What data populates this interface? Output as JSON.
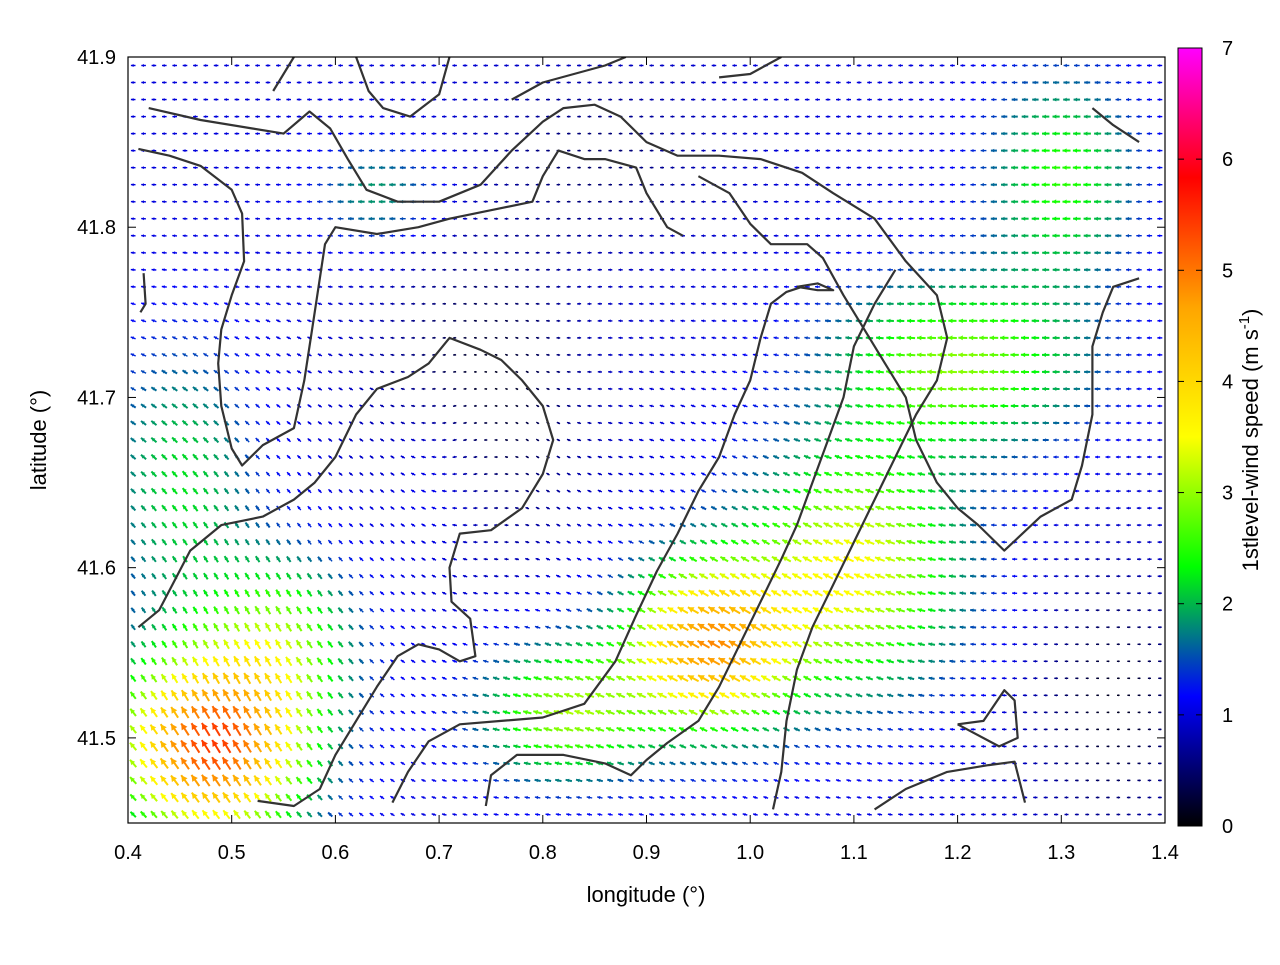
{
  "chart_data": {
    "type": "vector-field",
    "xlabel": "longitude (°)",
    "ylabel": "latitude (°)",
    "xlim": [
      0.4,
      1.4
    ],
    "ylim": [
      41.45,
      41.9
    ],
    "xticks": [
      "0.4",
      "0.5",
      "0.6",
      "0.7",
      "0.8",
      "0.9",
      "1.0",
      "1.1",
      "1.2",
      "1.3",
      "1.4"
    ],
    "yticks": [
      "41.5",
      "41.6",
      "41.7",
      "41.8",
      "41.9"
    ],
    "colorbar": {
      "label": "1stlevel-wind speed (m s-1)",
      "label_main": "1stlevel-wind speed (m s",
      "label_sup": "-1",
      "label_end": ")",
      "min": 0,
      "max": 7,
      "ticks": [
        "0",
        "1",
        "2",
        "3",
        "4",
        "5",
        "6",
        "7"
      ],
      "colors": [
        "#000000",
        "#0000ff",
        "#00ff00",
        "#ffff00",
        "#ffa500",
        "#ff0000",
        "#ff00ff"
      ]
    },
    "grid": {
      "dlon": 0.01,
      "dlat": 0.01
    },
    "wind_regimes": [
      {
        "region": "north, west of 1.12",
        "direction": "westward",
        "speed_range": [
          0.3,
          2.2
        ]
      },
      {
        "region": "northeast corner",
        "direction": "west-southwestward",
        "speed_range": [
          2.0,
          3.0
        ]
      },
      {
        "region": "central valley",
        "direction": "convergent, weak",
        "speed_range": [
          0.0,
          1.2
        ]
      },
      {
        "region": "southwest",
        "direction": "north-northwestward",
        "speed_range": [
          1.5,
          5.4
        ]
      },
      {
        "region": "south-central",
        "direction": "northwestward",
        "speed_range": [
          2.5,
          4.8
        ]
      },
      {
        "region": "southeast",
        "direction": "westward",
        "speed_range": [
          0.5,
          2.5
        ]
      }
    ],
    "wind_speed_maxima": [
      {
        "lon": 0.48,
        "lat": 41.49,
        "speed": 5.3
      },
      {
        "lon": 0.96,
        "lat": 41.55,
        "speed": 4.6
      }
    ],
    "contour_lines": [
      [
        [
          0.42,
          41.87
        ],
        [
          0.47,
          41.863
        ],
        [
          0.52,
          41.858
        ],
        [
          0.55,
          41.855
        ],
        [
          0.575,
          41.868
        ],
        [
          0.595,
          41.858
        ],
        [
          0.612,
          41.84
        ],
        [
          0.63,
          41.822
        ],
        [
          0.66,
          41.815
        ],
        [
          0.7,
          41.815
        ],
        [
          0.74,
          41.825
        ],
        [
          0.77,
          41.845
        ],
        [
          0.8,
          41.862
        ],
        [
          0.82,
          41.87
        ],
        [
          0.85,
          41.872
        ],
        [
          0.875,
          41.865
        ],
        [
          0.9,
          41.85
        ],
        [
          0.93,
          41.842
        ],
        [
          0.97,
          41.842
        ],
        [
          1.01,
          41.84
        ],
        [
          1.05,
          41.832
        ],
        [
          1.08,
          41.82
        ],
        [
          1.12,
          41.805
        ],
        [
          1.15,
          41.78
        ],
        [
          1.18,
          41.76
        ],
        [
          1.19,
          41.735
        ],
        [
          1.18,
          41.71
        ],
        [
          1.16,
          41.69
        ],
        [
          1.14,
          41.665
        ],
        [
          1.12,
          41.64
        ],
        [
          1.1,
          41.615
        ],
        [
          1.08,
          41.59
        ],
        [
          1.06,
          41.565
        ],
        [
          1.045,
          41.54
        ],
        [
          1.035,
          41.51
        ],
        [
          1.03,
          41.48
        ],
        [
          1.022,
          41.458
        ]
      ],
      [
        [
          0.41,
          41.846
        ],
        [
          0.44,
          41.842
        ],
        [
          0.47,
          41.836
        ],
        [
          0.5,
          41.822
        ],
        [
          0.51,
          41.808
        ],
        [
          0.512,
          41.78
        ],
        [
          0.5,
          41.76
        ],
        [
          0.49,
          41.74
        ],
        [
          0.487,
          41.72
        ],
        [
          0.49,
          41.695
        ],
        [
          0.5,
          41.67
        ],
        [
          0.51,
          41.66
        ],
        [
          0.53,
          41.672
        ],
        [
          0.56,
          41.682
        ],
        [
          0.57,
          41.71
        ],
        [
          0.58,
          41.75
        ],
        [
          0.59,
          41.79
        ],
        [
          0.6,
          41.8
        ],
        [
          0.64,
          41.796
        ],
        [
          0.68,
          41.8
        ],
        [
          0.71,
          41.805
        ],
        [
          0.75,
          41.81
        ],
        [
          0.79,
          41.815
        ],
        [
          0.8,
          41.83
        ],
        [
          0.815,
          41.845
        ],
        [
          0.84,
          41.84
        ],
        [
          0.86,
          41.84
        ],
        [
          0.89,
          41.835
        ],
        [
          0.9,
          41.82
        ],
        [
          0.92,
          41.8
        ],
        [
          0.935,
          41.795
        ]
      ],
      [
        [
          0.41,
          41.565
        ],
        [
          0.43,
          41.575
        ],
        [
          0.46,
          41.61
        ],
        [
          0.49,
          41.625
        ],
        [
          0.53,
          41.63
        ],
        [
          0.56,
          41.64
        ],
        [
          0.58,
          41.65
        ],
        [
          0.6,
          41.665
        ],
        [
          0.62,
          41.69
        ],
        [
          0.64,
          41.705
        ],
        [
          0.67,
          41.712
        ],
        [
          0.69,
          41.72
        ],
        [
          0.71,
          41.735
        ],
        [
          0.74,
          41.728
        ],
        [
          0.76,
          41.722
        ],
        [
          0.78,
          41.71
        ],
        [
          0.8,
          41.695
        ],
        [
          0.81,
          41.675
        ],
        [
          0.8,
          41.655
        ],
        [
          0.78,
          41.635
        ],
        [
          0.75,
          41.622
        ],
        [
          0.72,
          41.62
        ],
        [
          0.71,
          41.6
        ],
        [
          0.712,
          41.58
        ],
        [
          0.73,
          41.57
        ],
        [
          0.735,
          41.548
        ],
        [
          0.72,
          41.545
        ],
        [
          0.7,
          41.552
        ],
        [
          0.68,
          41.555
        ],
        [
          0.66,
          41.548
        ],
        [
          0.64,
          41.53
        ],
        [
          0.62,
          41.51
        ],
        [
          0.6,
          41.49
        ],
        [
          0.585,
          41.47
        ],
        [
          0.56,
          41.46
        ],
        [
          0.525,
          41.463
        ]
      ],
      [
        [
          0.655,
          41.462
        ],
        [
          0.67,
          41.48
        ],
        [
          0.69,
          41.498
        ],
        [
          0.72,
          41.508
        ],
        [
          0.76,
          41.51
        ],
        [
          0.8,
          41.512
        ],
        [
          0.84,
          41.52
        ],
        [
          0.87,
          41.545
        ],
        [
          0.89,
          41.572
        ],
        [
          0.91,
          41.598
        ],
        [
          0.93,
          41.62
        ],
        [
          0.95,
          41.645
        ],
        [
          0.97,
          41.665
        ],
        [
          0.985,
          41.69
        ],
        [
          1.0,
          41.71
        ],
        [
          1.01,
          41.735
        ],
        [
          1.02,
          41.755
        ],
        [
          1.035,
          41.762
        ],
        [
          1.05,
          41.765
        ]
      ],
      [
        [
          0.745,
          41.46
        ],
        [
          0.75,
          41.478
        ],
        [
          0.775,
          41.49
        ],
        [
          0.82,
          41.49
        ],
        [
          0.86,
          41.485
        ],
        [
          0.885,
          41.478
        ],
        [
          0.9,
          41.487
        ],
        [
          0.92,
          41.497
        ],
        [
          0.95,
          41.51
        ],
        [
          0.97,
          41.53
        ],
        [
          0.99,
          41.555
        ],
        [
          1.01,
          41.58
        ],
        [
          1.03,
          41.605
        ],
        [
          1.045,
          41.625
        ],
        [
          1.06,
          41.65
        ],
        [
          1.075,
          41.675
        ],
        [
          1.09,
          41.7
        ],
        [
          1.1,
          41.73
        ],
        [
          1.12,
          41.755
        ],
        [
          1.14,
          41.775
        ]
      ],
      [
        [
          0.95,
          41.83
        ],
        [
          0.98,
          41.82
        ],
        [
          1.0,
          41.802
        ],
        [
          1.02,
          41.79
        ],
        [
          1.055,
          41.79
        ],
        [
          1.07,
          41.782
        ],
        [
          1.09,
          41.76
        ],
        [
          1.11,
          41.74
        ],
        [
          1.13,
          41.72
        ],
        [
          1.15,
          41.7
        ],
        [
          1.16,
          41.675
        ],
        [
          1.18,
          41.65
        ],
        [
          1.2,
          41.635
        ],
        [
          1.22,
          41.625
        ],
        [
          1.245,
          41.61
        ],
        [
          1.28,
          41.63
        ],
        [
          1.31,
          41.64
        ],
        [
          1.32,
          41.66
        ],
        [
          1.33,
          41.69
        ],
        [
          1.33,
          41.73
        ],
        [
          1.34,
          41.75
        ],
        [
          1.35,
          41.765
        ],
        [
          1.375,
          41.77
        ]
      ],
      [
        [
          1.12,
          41.458
        ],
        [
          1.15,
          41.47
        ],
        [
          1.19,
          41.48
        ],
        [
          1.23,
          41.484
        ],
        [
          1.255,
          41.486
        ],
        [
          1.265,
          41.462
        ]
      ],
      [
        [
          1.2,
          41.508
        ],
        [
          1.225,
          41.51
        ],
        [
          1.245,
          41.528
        ],
        [
          1.255,
          41.522
        ],
        [
          1.258,
          41.5
        ],
        [
          1.24,
          41.495
        ],
        [
          1.2,
          41.508
        ]
      ],
      [
        [
          0.54,
          41.88
        ],
        [
          0.56,
          41.9
        ]
      ],
      [
        [
          0.62,
          41.9
        ],
        [
          0.632,
          41.88
        ],
        [
          0.646,
          41.87
        ],
        [
          0.672,
          41.865
        ],
        [
          0.7,
          41.878
        ],
        [
          0.71,
          41.9
        ]
      ],
      [
        [
          0.77,
          41.875
        ],
        [
          0.8,
          41.885
        ],
        [
          0.83,
          41.89
        ],
        [
          0.86,
          41.895
        ],
        [
          0.88,
          41.9
        ]
      ],
      [
        [
          0.97,
          41.888
        ],
        [
          1.0,
          41.89
        ],
        [
          1.03,
          41.9
        ]
      ],
      [
        [
          1.33,
          41.87
        ],
        [
          1.35,
          41.86
        ],
        [
          1.375,
          41.85
        ]
      ],
      [
        [
          1.045,
          41.765
        ],
        [
          1.065,
          41.763
        ],
        [
          1.08,
          41.763
        ],
        [
          1.065,
          41.767
        ],
        [
          1.045,
          41.765
        ]
      ],
      [
        [
          0.415,
          41.773
        ],
        [
          0.417,
          41.755
        ],
        [
          0.412,
          41.75
        ]
      ]
    ]
  }
}
